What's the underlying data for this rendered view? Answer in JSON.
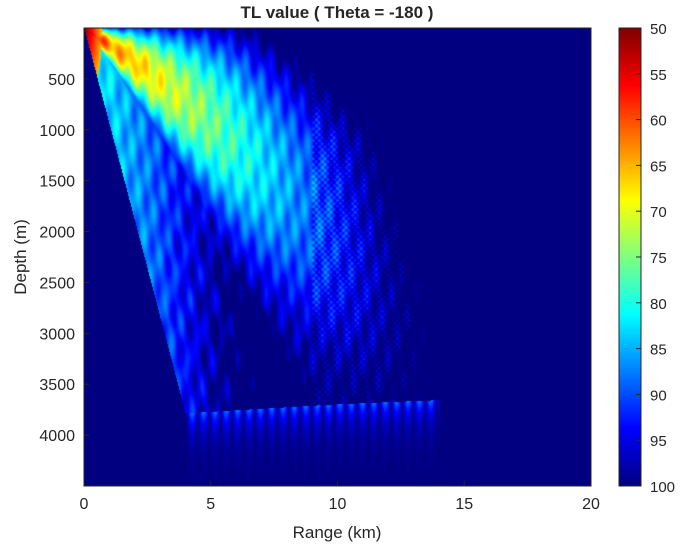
{
  "chart_data": {
    "type": "heatmap",
    "title": "TL value ( Theta = -180 )",
    "xlabel": "Range (km)",
    "ylabel": "Depth (m)",
    "xlim": [
      0,
      20
    ],
    "ylim": [
      0,
      4500
    ],
    "y_reversed": true,
    "x_ticks": [
      "0",
      "5",
      "10",
      "15",
      "20"
    ],
    "y_ticks": [
      "500",
      "1000",
      "1500",
      "2000",
      "2500",
      "3000",
      "3500",
      "4000"
    ],
    "colorbar": {
      "colormap": "jet",
      "reversed": true,
      "range": [
        50,
        100
      ],
      "ticks": [
        "50",
        "55",
        "60",
        "65",
        "70",
        "75",
        "80",
        "85",
        "90",
        "95",
        "100"
      ]
    },
    "grid": false,
    "features": {
      "source_range_km": 0,
      "source_depth_m": 0,
      "bottom_depth_m_at_20km": 3600,
      "bottom_depth_m_at_10km": 3700
    }
  },
  "colors": {
    "background": "#00008f",
    "axis": "#262626"
  }
}
